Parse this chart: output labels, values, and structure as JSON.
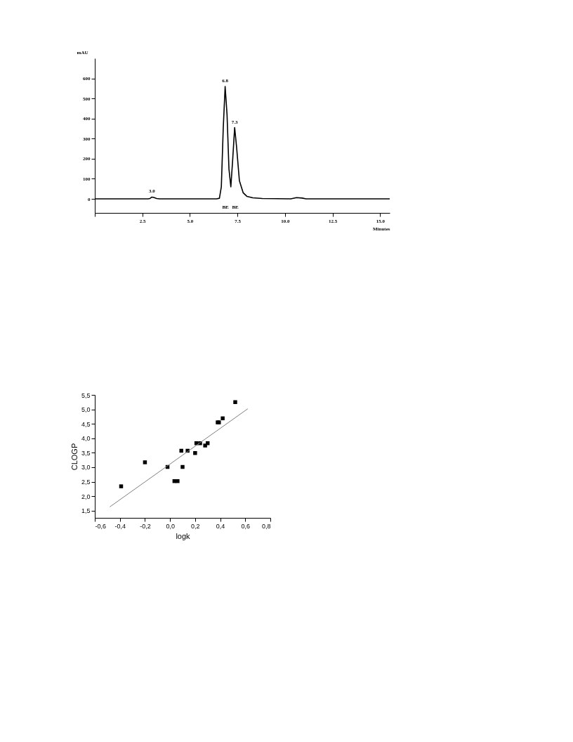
{
  "chart_data": [
    {
      "type": "line",
      "xlabel": "Minutes",
      "ylabel": "mAU",
      "xlim": [
        0,
        15.5
      ],
      "ylim": [
        -70,
        700
      ],
      "xticks": [
        {
          "value": 0,
          "label": null
        },
        {
          "value": 2.5,
          "label": "2.5"
        },
        {
          "value": 5,
          "label": "5.0"
        },
        {
          "value": 7.5,
          "label": "7.5"
        },
        {
          "value": 10,
          "label": "10.0"
        },
        {
          "value": 12.5,
          "label": "12.5"
        },
        {
          "value": 15,
          "label": "15.0"
        }
      ],
      "yticks": [
        0,
        100,
        200,
        300,
        400,
        500,
        600
      ],
      "grid": false,
      "marker": "none",
      "line_style": "solid",
      "series": [
        {
          "color": "#000000",
          "x": [
            0,
            2.8,
            2.9,
            3.0,
            3.1,
            3.25,
            3.4,
            6.4,
            6.55,
            6.65,
            6.75,
            6.85,
            6.95,
            7.05,
            7.15,
            7.25,
            7.35,
            7.45,
            7.6,
            7.8,
            8.0,
            8.3,
            8.8,
            10.3,
            10.6,
            10.9,
            11.1,
            15.5
          ],
          "values": [
            0,
            0,
            2,
            9,
            7,
            2,
            0,
            0,
            3,
            60,
            350,
            560,
            420,
            150,
            60,
            200,
            355,
            260,
            90,
            30,
            12,
            5,
            2,
            0,
            6,
            4,
            0,
            0
          ]
        }
      ],
      "annotations": [
        {
          "text": "3.0",
          "x": 3.0,
          "y": 9
        },
        {
          "text": "6.8",
          "x": 6.85,
          "y": 560
        },
        {
          "text": "7.3",
          "x": 7.35,
          "y": 355
        },
        "BE",
        "BE"
      ]
    },
    {
      "type": "scatter",
      "xlabel": "logk",
      "ylabel": "CLOGP",
      "xlim": [
        -0.6,
        0.8
      ],
      "ylim": [
        1.25,
        5.5
      ],
      "xticks": [
        {
          "value": -0.6,
          "label": "-0,6"
        },
        {
          "value": -0.4,
          "label": "-0,4"
        },
        {
          "value": -0.2,
          "label": "-0,2"
        },
        {
          "value": 0,
          "label": "0,0"
        },
        {
          "value": 0.2,
          "label": "0,2"
        },
        {
          "value": 0.4,
          "label": "0,4"
        },
        {
          "value": 0.6,
          "label": "0,6"
        },
        {
          "value": 0.8,
          "label": "0,8"
        }
      ],
      "yticks": [
        {
          "value": 1.5,
          "label": "1,5"
        },
        {
          "value": 2,
          "label": "2,0"
        },
        {
          "value": 2.5,
          "label": "2,5"
        },
        {
          "value": 3,
          "label": "3,0"
        },
        {
          "value": 3.5,
          "label": "3,5"
        },
        {
          "value": 4,
          "label": "4,0"
        },
        {
          "value": 4.5,
          "label": "4,5"
        },
        {
          "value": 5,
          "label": "5,0"
        },
        {
          "value": 5.5,
          "label": "5,5"
        }
      ],
      "grid": false,
      "series": [
        {
          "type": "scatter",
          "marker": "square",
          "color": "#000000",
          "x": [
            -0.39,
            -0.2,
            -0.02,
            0.035,
            0.06,
            0.09,
            0.1,
            0.14,
            0.2,
            0.21,
            0.24,
            0.28,
            0.3,
            0.38,
            0.39,
            0.42,
            0.52
          ],
          "values": [
            2.34,
            3.17,
            3.01,
            2.52,
            2.52,
            3.57,
            3.01,
            3.57,
            3.49,
            3.83,
            3.83,
            3.75,
            3.83,
            4.55,
            4.55,
            4.69,
            5.25
          ]
        },
        {
          "type": "line",
          "marker": "none",
          "line_style": "solid",
          "color": "#808080",
          "x": [
            -0.48,
            0.62
          ],
          "values": [
            1.63,
            5.02
          ]
        }
      ]
    }
  ]
}
